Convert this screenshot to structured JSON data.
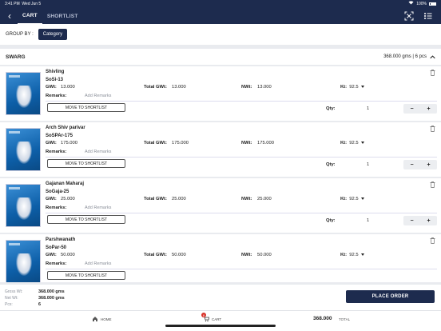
{
  "status": {
    "time": "3:41 PM",
    "date": "Wed Jun 5",
    "battery": "100%"
  },
  "header": {
    "tabs": [
      {
        "label": "CART"
      },
      {
        "label": "SHORTLIST"
      }
    ]
  },
  "group_by": {
    "label": "GROUP BY :",
    "value": "Category"
  },
  "section": {
    "name": "SWARG",
    "summary": "368.000 gms | 6 pcs"
  },
  "labels": {
    "gwt": "GWt:",
    "total_gwt": "Total GWt:",
    "nwt": "NWt:",
    "kt": "Kt:",
    "remarks": "Remarks:",
    "remarks_placeholder": "Add Remarks",
    "move": "MOVE TO SHORTLIST",
    "qty": "Qty:",
    "minus": "−",
    "plus": "+"
  },
  "items": [
    {
      "name": "Shivling",
      "code": "SoSi-13",
      "gwt": "13.000",
      "total_gwt": "13.000",
      "nwt": "13.000",
      "kt": "92.5",
      "qty": "1"
    },
    {
      "name": "Arch Shiv parivar",
      "code": "SoSPAr-175",
      "gwt": "175.000",
      "total_gwt": "175.000",
      "nwt": "175.000",
      "kt": "92.5",
      "qty": "1"
    },
    {
      "name": "Gajanan Maharaj",
      "code": "SoGaja-25",
      "gwt": "25.000",
      "total_gwt": "25.000",
      "nwt": "25.000",
      "kt": "92.5",
      "qty": "1"
    },
    {
      "name": "Parshwanath",
      "code": "SoPar-50",
      "gwt": "50.000",
      "total_gwt": "50.000",
      "nwt": "50.000",
      "kt": "92.5",
      "qty": "1"
    }
  ],
  "totals": {
    "gross_label": "Gross Wt:",
    "gross": "368.000 gms",
    "net_label": "Net Wt:",
    "net": "368.000 gms",
    "pcs_label": "Pcs:",
    "pcs": "6",
    "place_order": "PLACE ORDER"
  },
  "bottom_nav": {
    "home": "HOME",
    "cart": "CART",
    "cart_badge": "6",
    "total": "368.000",
    "total_label": "TOTAL"
  }
}
